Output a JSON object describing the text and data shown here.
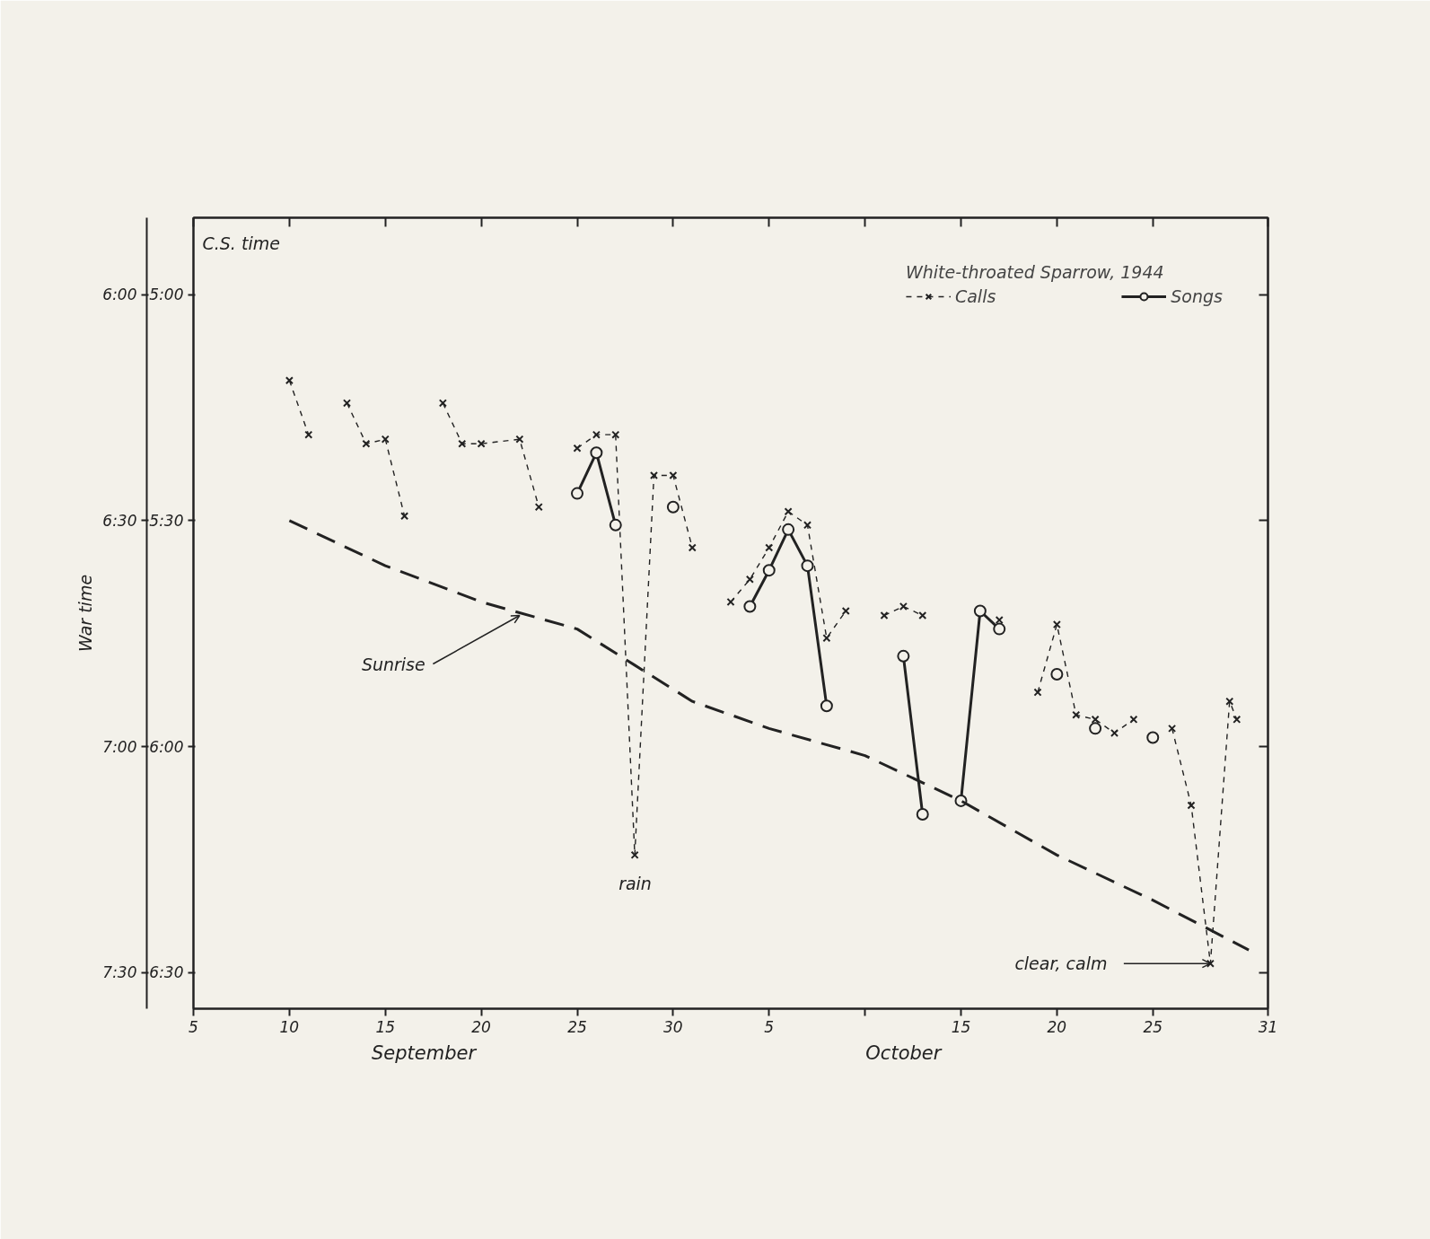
{
  "chart_data": {
    "type": "line",
    "legend_title": "White-throated Sparrow, 1944",
    "ylabel": "War time",
    "y2label": "C.S. time",
    "xlim": [
      "1944-09-05",
      "1944-10-31"
    ],
    "xticks": [
      {
        "value": "1944-09-05",
        "label": "5"
      },
      {
        "value": "1944-09-10",
        "label": "10"
      },
      {
        "value": "1944-09-15",
        "label": "15"
      },
      {
        "value": "1944-09-20",
        "label": "20"
      },
      {
        "value": "1944-09-25",
        "label": "25"
      },
      {
        "value": "1944-09-30",
        "label": "30"
      },
      {
        "value": "1944-10-05",
        "label": "5"
      },
      {
        "value": "1944-10-10",
        "label": null
      },
      {
        "value": "1944-10-15",
        "label": "15"
      },
      {
        "value": "1944-10-20",
        "label": "20"
      },
      {
        "value": "1944-10-25",
        "label": "25"
      },
      {
        "value": "1944-10-31",
        "label": "31"
      }
    ],
    "ylim": [
      7.58,
      5.83
    ],
    "yticks": [
      {
        "value": 6,
        "label": "6:00"
      },
      {
        "value": 6.5,
        "label": "6:30"
      },
      {
        "value": 7,
        "label": "7:00"
      },
      {
        "value": 7.5,
        "label": "7:30"
      }
    ],
    "y2lim": [
      6.58,
      4.83
    ],
    "y2ticks": [
      {
        "value": 5,
        "label": "5:00"
      },
      {
        "value": 5.5,
        "label": "5:30"
      },
      {
        "value": 6,
        "label": "6:00"
      },
      {
        "value": 6.5,
        "label": "6:30"
      }
    ],
    "grid": false,
    "legend": "top right",
    "series": [
      {
        "name": "Calls",
        "color": "#222222",
        "marker": "cross",
        "line_style": "dashed",
        "x": [
          "1944-09-10",
          "1944-09-11",
          "1944-09-12",
          "1944-09-13",
          "1944-09-14",
          "1944-09-15",
          "1944-09-16",
          "1944-09-17",
          "1944-09-18",
          "1944-09-19",
          "1944-09-20",
          "1944-09-22",
          "1944-09-23",
          "1944-09-24",
          "1944-09-25",
          "1944-09-26",
          "1944-09-27",
          "1944-09-28",
          "1944-09-29",
          "1944-09-30",
          "1944-10-01",
          "1944-10-02",
          "1944-10-03",
          "1944-10-04",
          "1944-10-05",
          "1944-10-06",
          "1944-10-07",
          "1944-10-08",
          "1944-10-09",
          "1944-10-10",
          "1944-10-11",
          "1944-10-12",
          "1944-10-13",
          "1944-10-14",
          "1944-10-17",
          "1944-10-18",
          "1944-10-19",
          "1944-10-20",
          "1944-10-21",
          "1944-10-22",
          "1944-10-23",
          "1944-10-24",
          "1944-10-25",
          "1944-10-26",
          "1944-10-27",
          "1944-10-28",
          "1944-10-29",
          "1944-10-29T09:00"
        ],
        "values": [
          6.19,
          6.31,
          null,
          6.24,
          6.33,
          6.32,
          6.49,
          null,
          6.24,
          6.33,
          6.33,
          6.32,
          6.47,
          null,
          6.34,
          6.31,
          6.31,
          7.24,
          6.4,
          6.4,
          6.56,
          null,
          6.68,
          6.63,
          6.56,
          6.48,
          6.51,
          6.76,
          6.7,
          null,
          6.71,
          6.69,
          6.71,
          null,
          6.72,
          null,
          6.88,
          6.73,
          6.93,
          6.94,
          6.97,
          6.94,
          null,
          6.96,
          7.13,
          7.48,
          6.9,
          6.94
        ]
      },
      {
        "name": "Songs",
        "color": "#222222",
        "marker": "circle",
        "line_style": "solid",
        "x": [
          "1944-09-25",
          "1944-09-26",
          "1944-09-27",
          "1944-09-28",
          "1944-09-30",
          "1944-10-02",
          "1944-10-04",
          "1944-10-05",
          "1944-10-06",
          "1944-10-07",
          "1944-10-08",
          "1944-10-10",
          "1944-10-12",
          "1944-10-13",
          "1944-10-14",
          "1944-10-15",
          "1944-10-16",
          "1944-10-17",
          "1944-10-18",
          "1944-10-20",
          "1944-10-21",
          "1944-10-22",
          "1944-10-23",
          "1944-10-25"
        ],
        "values": [
          6.44,
          6.35,
          6.51,
          null,
          6.47,
          null,
          6.69,
          6.61,
          6.52,
          6.6,
          6.91,
          null,
          6.8,
          7.15,
          null,
          7.12,
          6.7,
          6.74,
          null,
          6.84,
          null,
          6.96,
          null,
          6.98
        ]
      },
      {
        "color": "#222222",
        "marker": "none",
        "line_style": "dashed",
        "x": [
          "1944-09-10",
          "1944-09-15",
          "1944-09-20",
          "1944-09-25",
          "1944-09-28",
          "1944-10-01",
          "1944-10-05",
          "1944-10-10",
          "1944-10-15",
          "1944-10-20",
          "1944-10-25",
          "1944-10-30"
        ],
        "values": [
          6.5,
          6.6,
          6.68,
          6.74,
          6.82,
          6.9,
          6.96,
          7.02,
          7.12,
          7.24,
          7.34,
          7.45
        ]
      }
    ],
    "annotations": [
      "September",
      "October",
      {
        "text": "rain",
        "x": "1944-09-28",
        "y": 7.24
      },
      {
        "text": "Sunrise",
        "x": "1944-09-22",
        "y": 6.71
      },
      {
        "text": "clear, calm",
        "x": "1944-10-28",
        "y": 7.48
      }
    ]
  }
}
